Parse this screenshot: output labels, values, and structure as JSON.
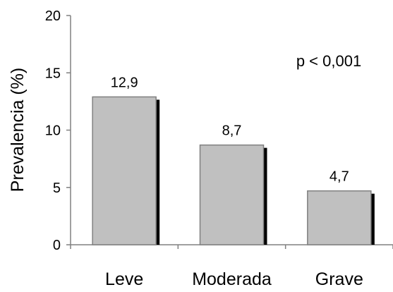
{
  "chart_data": {
    "type": "bar",
    "categories": [
      "Leve",
      "Moderada",
      "Grave"
    ],
    "series": [
      {
        "values": [
          12.9,
          8.7,
          4.7
        ],
        "value_labels": [
          "12,9",
          "8,7",
          "4,7"
        ]
      }
    ],
    "title": "",
    "xlabel": "",
    "ylabel": "Prevalencia (%)",
    "ylim": [
      0,
      20
    ],
    "yticks": [
      0,
      5,
      10,
      15,
      20
    ],
    "grid": false,
    "legend": "none",
    "annotation": "p < 0,001",
    "colors": {
      "bar_fill": "#c0c0c0",
      "bar_border": "#808080",
      "bar_shadow": "#000000",
      "axis": "#808080"
    }
  }
}
